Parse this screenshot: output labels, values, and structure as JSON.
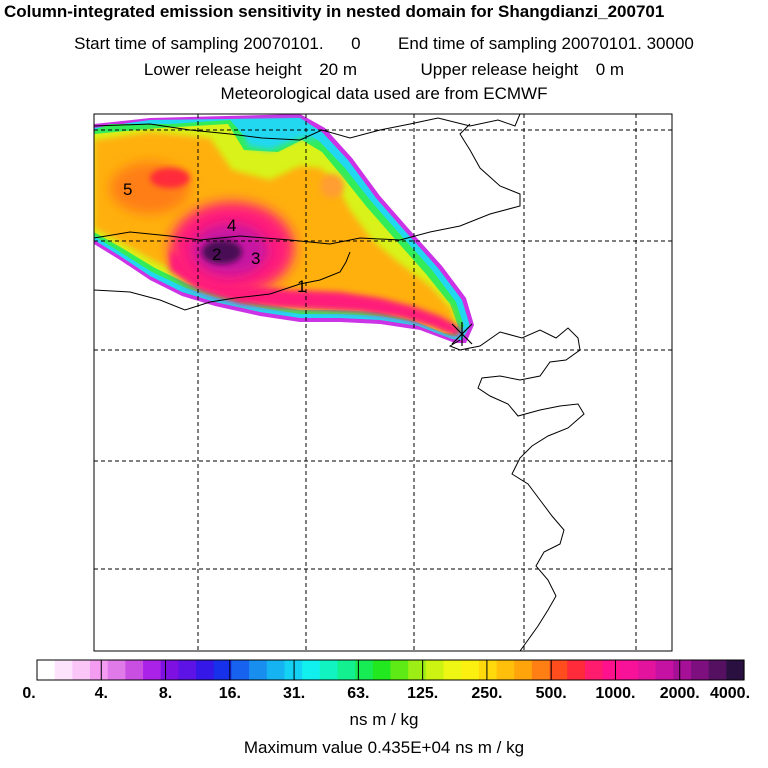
{
  "header": {
    "title": "Column-integrated emission sensitivity in nested domain for Shangdianzi_200701",
    "start_label": "Start time of sampling",
    "start_date": "20070101.",
    "start_time": "0",
    "end_label": "End time of sampling",
    "end_value": "20070101. 30000",
    "lower_label": "Lower release height",
    "lower_value": "20 m",
    "upper_label": "Upper release height",
    "upper_value": "0 m",
    "met_line": "Meteorological data used are from ECMWF"
  },
  "map": {
    "labels": [
      {
        "id": "5",
        "text": "5"
      },
      {
        "id": "4",
        "text": "4"
      },
      {
        "id": "2",
        "text": "2"
      },
      {
        "id": "3",
        "text": "3"
      },
      {
        "id": "1",
        "text": "1"
      }
    ],
    "receptor_marker": "receptor-cross"
  },
  "colorbar": {
    "colors": [
      "#ffffff",
      "#fde4fc",
      "#fac6f8",
      "#f39cf1",
      "#e07ae9",
      "#c94fe3",
      "#aa22e8",
      "#7f10e2",
      "#5e13e6",
      "#3517e8",
      "#1730ea",
      "#1862f0",
      "#188fef",
      "#15b3f1",
      "#14d2f3",
      "#11f0ee",
      "#11f3c1",
      "#13f08f",
      "#18ec55",
      "#22e81f",
      "#5eea15",
      "#9cee15",
      "#cdf313",
      "#eef613",
      "#fbf00f",
      "#ffd90c",
      "#ffbf0a",
      "#ffa40a",
      "#ff7f14",
      "#ff4d1e",
      "#ff2a3a",
      "#ff1b6d",
      "#ff118e",
      "#f81199",
      "#e3139e",
      "#c612a3",
      "#a61097",
      "#7d107e",
      "#561062",
      "#2a1040"
    ],
    "tick_labels": [
      "0.",
      "4.",
      "8.",
      "16.",
      "31.",
      "63.",
      "125.",
      "250.",
      "500.",
      "1000.",
      "2000.",
      "4000."
    ],
    "unit": "ns m / kg"
  },
  "footer": {
    "max_label": "Maximum value",
    "max_value": "0.435E+04",
    "max_unit": "ns m / kg"
  }
}
